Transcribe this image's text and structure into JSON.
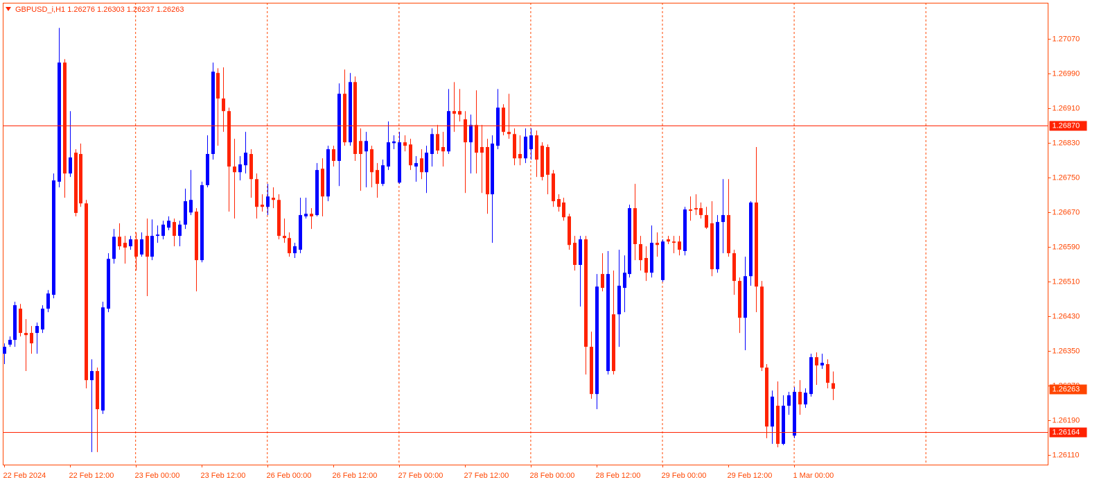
{
  "chart_data": {
    "type": "candlestick",
    "title": "GBPUSD_i,H1",
    "up_color": "#0000ff",
    "down_color": "#ff2200",
    "axis_color": "#ff4500",
    "grid": true,
    "ylim": [
      1.26088,
      1.27154
    ],
    "yticks": [
      {
        "value": 1.2707,
        "label": "1.27070"
      },
      {
        "value": 1.2699,
        "label": "1.26990"
      },
      {
        "value": 1.2691,
        "label": "1.26910"
      },
      {
        "value": 1.2683,
        "label": "1.26830"
      },
      {
        "value": 1.2675,
        "label": "1.26750"
      },
      {
        "value": 1.2667,
        "label": "1.26670"
      },
      {
        "value": 1.2659,
        "label": "1.26590"
      },
      {
        "value": 1.2651,
        "label": "1.26510"
      },
      {
        "value": 1.2643,
        "label": "1.26430"
      },
      {
        "value": 1.2635,
        "label": "1.26350"
      },
      {
        "value": 1.2627,
        "label": "1.26270"
      },
      {
        "value": 1.2619,
        "label": "1.26190"
      },
      {
        "value": 1.2611,
        "label": "1.26110"
      }
    ],
    "hlines": [
      {
        "value": 1.2687,
        "label": "1.26870"
      },
      1.26164
    ],
    "categories": [
      "22 Feb 2024",
      null,
      null,
      null,
      null,
      null,
      null,
      null,
      null,
      null,
      null,
      null,
      "22 Feb 12:00",
      null,
      null,
      null,
      null,
      null,
      null,
      null,
      null,
      null,
      null,
      null,
      "23 Feb 00:00",
      null,
      null,
      null,
      null,
      null,
      null,
      null,
      null,
      null,
      null,
      null,
      "23 Feb 12:00",
      null,
      null,
      null,
      null,
      null,
      null,
      null,
      null,
      null,
      null,
      null,
      "26 Feb 00:00",
      null,
      null,
      null,
      null,
      null,
      null,
      null,
      null,
      null,
      null,
      null,
      "26 Feb 12:00",
      null,
      null,
      null,
      null,
      null,
      null,
      null,
      null,
      null,
      null,
      null,
      "27 Feb 00:00",
      null,
      null,
      null,
      null,
      null,
      null,
      null,
      null,
      null,
      null,
      null,
      "27 Feb 12:00",
      null,
      null,
      null,
      null,
      null,
      null,
      null,
      null,
      null,
      null,
      null,
      "28 Feb 00:00",
      null,
      null,
      null,
      null,
      null,
      null,
      null,
      null,
      null,
      null,
      null,
      "28 Feb 12:00",
      null,
      null,
      null,
      null,
      null,
      null,
      null,
      null,
      null,
      null,
      null,
      "29 Feb 00:00",
      null,
      null,
      null,
      null,
      null,
      null,
      null,
      null,
      null,
      null,
      null,
      "29 Feb 12:00",
      null,
      null,
      null,
      null,
      null,
      null,
      null,
      null,
      null,
      null,
      null,
      "1 Mar 00:00",
      null,
      null,
      null,
      null,
      null,
      null,
      null
    ],
    "open": [
      1.26344,
      1.26365,
      1.26376,
      1.26448,
      1.26392,
      1.26392,
      1.26392,
      1.264,
      1.26448,
      1.2648,
      1.26741,
      1.27016,
      1.2676,
      1.26808,
      1.26805,
      1.26691,
      1.26283,
      1.26304,
      1.26213,
      1.26448,
      1.26563,
      1.26614,
      1.266,
      1.26592,
      1.26608,
      1.26573,
      1.26616,
      1.26568,
      1.26616,
      1.26616,
      1.26635,
      1.26648,
      1.26616,
      1.26642,
      1.2667,
      1.26672,
      1.2656,
      1.26733,
      1.26805,
      1.26992,
      1.26933,
      1.26904,
      1.26776,
      1.26763,
      1.26779,
      1.26805,
      1.26747,
      1.26688,
      1.26683,
      1.26704,
      1.26699,
      1.26616,
      1.26611,
      1.26576,
      1.26584,
      1.26661,
      1.26667,
      1.26664,
      1.26771,
      1.26707,
      1.26816,
      1.26789,
      1.26944,
      1.26832,
      1.26971,
      1.26835,
      1.26811,
      1.26816,
      1.26768,
      1.26736,
      1.26776,
      1.2683,
      1.26739,
      1.26832,
      1.26827,
      1.26776,
      1.26795,
      1.26763,
      1.26805,
      1.26851,
      1.26821,
      1.26811,
      1.26904,
      1.26904,
      1.26885,
      1.26832,
      1.26872,
      1.26821,
      1.26821,
      1.26712,
      1.26824,
      1.26912,
      1.26856,
      1.26851,
      1.26805,
      1.26795,
      1.26816,
      1.26848,
      1.26824,
      1.26821,
      1.2676,
      1.26701,
      1.26693,
      1.26661,
      1.266,
      1.26549,
      1.26608,
      1.2636,
      1.26251,
      1.26528,
      1.26304,
      1.26435,
      1.26435,
      1.26496,
      1.26528,
      1.2668,
      1.26597,
      1.26565,
      1.26531,
      1.266,
      1.26514,
      1.26608,
      1.26603,
      1.26603,
      1.26581,
      1.26677,
      1.2668,
      1.2668,
      1.26664,
      1.26645,
      1.26539,
      1.26648,
      1.26664,
      1.26576,
      1.26512,
      1.26427,
      1.26523,
      1.26693,
      1.26499,
      1.26312,
      1.26176,
      1.26224,
      1.26136,
      1.26224,
      1.26155,
      1.26256,
      1.26227,
      1.26251,
      1.26336,
      1.26317,
      1.2632,
      1.26276
    ],
    "high": [
      1.26368,
      1.26384,
      1.26464,
      1.26459,
      1.26424,
      1.26408,
      1.26416,
      1.26456,
      1.26491,
      1.2676,
      1.27096,
      1.27024,
      1.26904,
      1.26816,
      1.26829,
      1.26699,
      1.26331,
      1.26312,
      1.26464,
      1.26576,
      1.26632,
      1.26645,
      1.26616,
      1.26616,
      1.26624,
      1.26624,
      1.26656,
      1.26654,
      1.2664,
      1.26651,
      1.26661,
      1.26656,
      1.26651,
      1.26725,
      1.26768,
      1.2668,
      1.26741,
      1.26848,
      1.27016,
      1.27003,
      1.27005,
      1.26912,
      1.2684,
      1.268,
      1.26856,
      1.26816,
      1.2676,
      1.26712,
      1.26736,
      1.26728,
      1.26712,
      1.26656,
      1.26624,
      1.266,
      1.26704,
      1.26704,
      1.2668,
      1.26784,
      1.26795,
      1.26824,
      1.26824,
      1.26968,
      1.27,
      1.26992,
      1.26984,
      1.26864,
      1.26856,
      1.26824,
      1.26784,
      1.26792,
      1.2688,
      1.26848,
      1.26856,
      1.26848,
      1.2684,
      1.268,
      1.26816,
      1.26824,
      1.26864,
      1.26872,
      1.26856,
      1.26955,
      1.26971,
      1.26955,
      1.26904,
      1.26896,
      1.26952,
      1.26872,
      1.2684,
      1.26848,
      1.26955,
      1.2692,
      1.26944,
      1.26864,
      1.26848,
      1.26864,
      1.26864,
      1.26859,
      1.26832,
      1.26827,
      1.26768,
      1.26712,
      1.26704,
      1.26667,
      1.26616,
      1.26616,
      1.26616,
      1.26395,
      1.26528,
      1.26576,
      1.26581,
      1.26536,
      1.26584,
      1.26571,
      1.26688,
      1.26736,
      1.26616,
      1.26592,
      1.2664,
      1.26624,
      1.26608,
      1.26616,
      1.26616,
      1.26616,
      1.26683,
      1.26707,
      1.26712,
      1.26693,
      1.26683,
      1.26696,
      1.26664,
      1.26747,
      1.26747,
      1.26584,
      1.2652,
      1.26568,
      1.26696,
      1.26821,
      1.26512,
      1.2632,
      1.26259,
      1.2628,
      1.26248,
      1.26256,
      1.26267,
      1.26283,
      1.26264,
      1.26344,
      1.26347,
      1.26344,
      1.26331,
      1.26303
    ],
    "low": [
      1.2632,
      1.2636,
      1.2636,
      1.26384,
      1.26304,
      1.26344,
      1.26344,
      1.26392,
      1.2644,
      1.26472,
      1.26728,
      1.26704,
      1.26752,
      1.26661,
      1.26683,
      1.26264,
      1.26117,
      1.26117,
      1.26205,
      1.2644,
      1.26552,
      1.26584,
      1.26552,
      1.26584,
      1.26536,
      1.26568,
      1.26477,
      1.2656,
      1.266,
      1.26608,
      1.26629,
      1.26592,
      1.26592,
      1.26632,
      1.26664,
      1.26488,
      1.26555,
      1.26728,
      1.26792,
      1.26824,
      1.26856,
      1.26672,
      1.26656,
      1.26744,
      1.2676,
      1.26704,
      1.26656,
      1.26672,
      1.26664,
      1.2668,
      1.26608,
      1.266,
      1.26568,
      1.26565,
      1.26576,
      1.26656,
      1.26632,
      1.26661,
      1.26661,
      1.26696,
      1.26776,
      1.26731,
      1.26824,
      1.26824,
      1.26789,
      1.2672,
      1.26728,
      1.26728,
      1.26704,
      1.26731,
      1.26768,
      1.26816,
      1.26736,
      1.26811,
      1.26768,
      1.26741,
      1.26747,
      1.26715,
      1.26776,
      1.26805,
      1.26776,
      1.26805,
      1.26856,
      1.2688,
      1.26715,
      1.2676,
      1.2676,
      1.26715,
      1.26667,
      1.266,
      1.26816,
      1.26848,
      1.2684,
      1.26779,
      1.26779,
      1.26784,
      1.26792,
      1.26752,
      1.26744,
      1.26712,
      1.26683,
      1.26672,
      1.26651,
      1.26584,
      1.26536,
      1.26453,
      1.26296,
      1.2624,
      1.26216,
      1.26488,
      1.26296,
      1.26296,
      1.2636,
      1.2644,
      1.2652,
      1.2656,
      1.26536,
      1.26512,
      1.2652,
      1.26568,
      1.2651,
      1.26597,
      1.26576,
      1.26571,
      1.26571,
      1.26651,
      1.26664,
      1.26656,
      1.26632,
      1.26523,
      1.26531,
      1.26576,
      1.26568,
      1.2648,
      1.26392,
      1.26352,
      1.26501,
      1.2644,
      1.26304,
      1.26149,
      1.26136,
      1.26128,
      1.26133,
      1.26203,
      1.26149,
      1.26203,
      1.26219,
      1.26245,
      1.26272,
      1.26309,
      1.26264,
      1.26237
    ],
    "close": [
      1.2636,
      1.26376,
      1.26456,
      1.26392,
      1.26387,
      1.26368,
      1.26408,
      1.26448,
      1.26483,
      1.26744,
      1.27016,
      1.2676,
      1.26797,
      1.26669,
      1.26691,
      1.26283,
      1.26304,
      1.26216,
      1.26451,
      1.26563,
      1.26614,
      1.26592,
      1.26589,
      1.26608,
      1.26568,
      1.26608,
      1.26568,
      1.26616,
      1.26619,
      1.26642,
      1.26651,
      1.26616,
      1.26642,
      1.26696,
      1.26699,
      1.2656,
      1.26733,
      1.26805,
      1.26995,
      1.26933,
      1.26904,
      1.26776,
      1.26763,
      1.26781,
      1.26808,
      1.26747,
      1.26683,
      1.26683,
      1.26707,
      1.26699,
      1.26616,
      1.26611,
      1.26576,
      1.26592,
      1.26664,
      1.26667,
      1.26661,
      1.26768,
      1.26707,
      1.26816,
      1.26789,
      1.26944,
      1.26832,
      1.26971,
      1.26805,
      1.26805,
      1.26835,
      1.26763,
      1.26736,
      1.26779,
      1.26832,
      1.26834,
      1.26832,
      1.26824,
      1.26779,
      1.26784,
      1.26763,
      1.26808,
      1.26851,
      1.26813,
      1.26811,
      1.26904,
      1.26898,
      1.26896,
      1.26832,
      1.26872,
      1.26808,
      1.26808,
      1.26712,
      1.26829,
      1.26912,
      1.26856,
      1.26851,
      1.26795,
      1.26795,
      1.26845,
      1.26848,
      1.26792,
      1.26752,
      1.26757,
      1.26696,
      1.26683,
      1.26659,
      1.26595,
      1.26549,
      1.26608,
      1.2636,
      1.26251,
      1.26499,
      1.26496,
      1.26528,
      1.26304,
      1.26501,
      1.26531,
      1.2668,
      1.26597,
      1.2656,
      1.26531,
      1.266,
      1.26595,
      1.26603,
      1.26603,
      1.266,
      1.26584,
      1.26677,
      1.26674,
      1.26677,
      1.26664,
      1.26635,
      1.26539,
      1.26648,
      1.26664,
      1.26576,
      1.26512,
      1.26427,
      1.26523,
      1.26693,
      1.26499,
      1.26312,
      1.26176,
      1.26245,
      1.26136,
      1.26224,
      1.26248,
      1.26256,
      1.26227,
      1.26254,
      1.26336,
      1.26317,
      1.26323,
      1.26277,
      1.26263
    ]
  }
}
